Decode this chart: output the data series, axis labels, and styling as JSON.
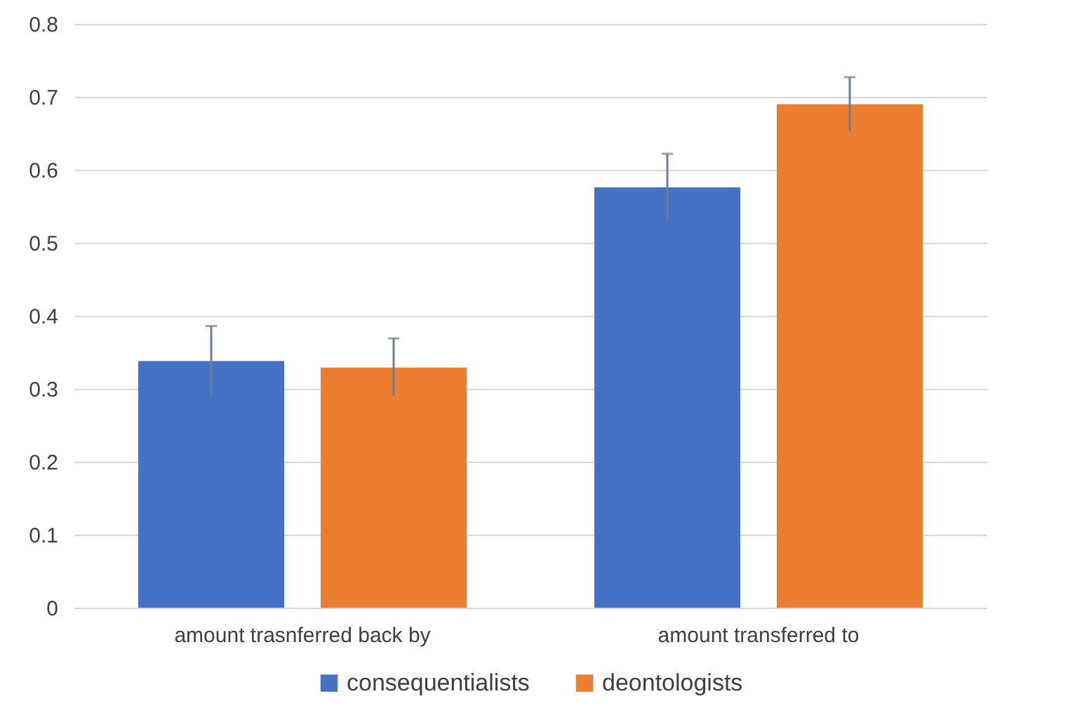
{
  "chart_data": {
    "type": "bar",
    "categories": [
      "amount trasnferred back by",
      "amount transferred to"
    ],
    "series": [
      {
        "name": "consequentialists",
        "color": "#4472c4",
        "values": [
          0.338,
          0.576
        ],
        "errors": [
          [
            0.293,
            0.386
          ],
          [
            0.531,
            0.622
          ]
        ]
      },
      {
        "name": "deontologists",
        "color": "#ed7d31",
        "values": [
          0.329,
          0.69
        ],
        "errors": [
          [
            0.29,
            0.369
          ],
          [
            0.653,
            0.727
          ]
        ]
      }
    ],
    "ylim": [
      0,
      0.8
    ],
    "yticks": [
      0,
      0.1,
      0.2,
      0.3,
      0.4,
      0.5,
      0.6,
      0.7,
      0.8
    ],
    "grid": "y",
    "legend": "bottom"
  }
}
